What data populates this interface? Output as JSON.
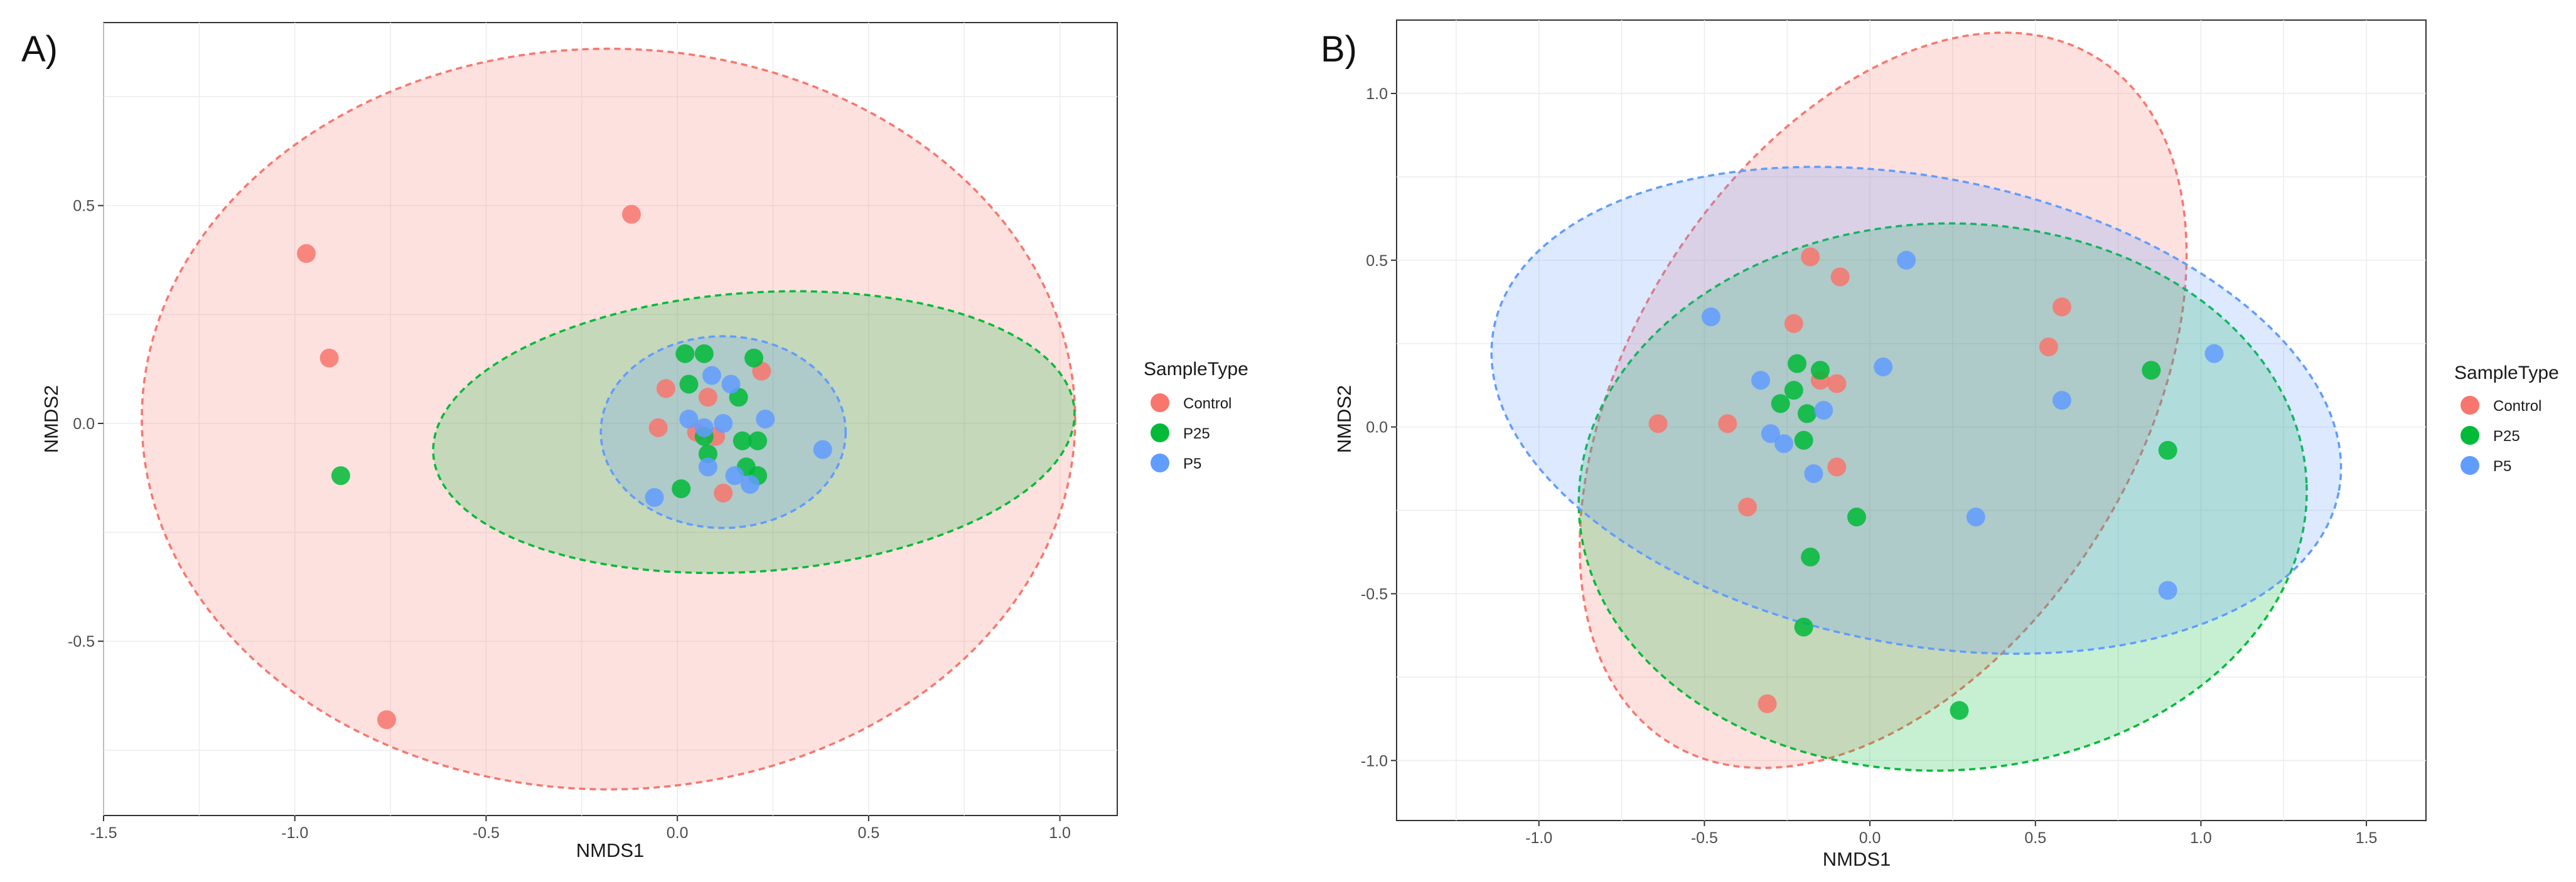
{
  "chart_data": [
    {
      "type": "scatter",
      "panel_label": "A)",
      "xlabel": "NMDS1",
      "ylabel": "NMDS2",
      "xlim": [
        -1.5,
        1.15
      ],
      "ylim": [
        -0.9,
        0.92
      ],
      "xticks": [
        -1.5,
        -1.0,
        -0.5,
        0.0,
        0.5,
        1.0
      ],
      "xtick_labels": [
        "-1.5",
        "-1.0",
        "-0.5",
        "0.0",
        "0.5",
        "1.0"
      ],
      "yticks": [
        -0.5,
        0.0,
        0.5
      ],
      "ytick_labels": [
        "-0.5",
        "0.0",
        "0.5"
      ],
      "grid": true,
      "legend": {
        "title": "SampleType",
        "position": "right",
        "entries": [
          "Control",
          "P25",
          "P5"
        ]
      },
      "series": [
        {
          "name": "Control",
          "color": "#F8766D",
          "ellipse": {
            "cx": -0.18,
            "cy": 0.01,
            "rx": 1.22,
            "ry": 0.85,
            "angle": 0
          },
          "points": [
            [
              -0.12,
              0.48
            ],
            [
              -0.97,
              0.39
            ],
            [
              -0.91,
              0.15
            ],
            [
              -0.76,
              -0.68
            ],
            [
              -0.03,
              0.08
            ],
            [
              0.08,
              0.06
            ],
            [
              -0.05,
              -0.01
            ],
            [
              0.1,
              -0.03
            ],
            [
              0.22,
              0.12
            ],
            [
              0.05,
              -0.02
            ],
            [
              0.12,
              -0.16
            ]
          ]
        },
        {
          "name": "P25",
          "color": "#00BA38",
          "ellipse": {
            "cx": 0.2,
            "cy": -0.02,
            "rx": 0.84,
            "ry": 0.32,
            "angle": 4
          },
          "points": [
            [
              -0.88,
              -0.12
            ],
            [
              0.02,
              0.16
            ],
            [
              0.07,
              0.16
            ],
            [
              0.2,
              0.15
            ],
            [
              0.03,
              0.09
            ],
            [
              0.16,
              0.06
            ],
            [
              0.07,
              -0.03
            ],
            [
              0.17,
              -0.04
            ],
            [
              0.21,
              -0.04
            ],
            [
              0.08,
              -0.07
            ],
            [
              0.18,
              -0.1
            ],
            [
              0.21,
              -0.12
            ],
            [
              0.01,
              -0.15
            ]
          ]
        },
        {
          "name": "P5",
          "color": "#619CFF",
          "ellipse": {
            "cx": 0.12,
            "cy": -0.02,
            "rx": 0.32,
            "ry": 0.22,
            "angle": 0
          },
          "points": [
            [
              0.09,
              0.11
            ],
            [
              0.14,
              0.09
            ],
            [
              0.03,
              0.01
            ],
            [
              0.12,
              0.0
            ],
            [
              0.23,
              0.01
            ],
            [
              0.07,
              -0.01
            ],
            [
              0.38,
              -0.06
            ],
            [
              0.08,
              -0.1
            ],
            [
              0.15,
              -0.12
            ],
            [
              0.19,
              -0.14
            ],
            [
              -0.06,
              -0.17
            ]
          ]
        }
      ]
    },
    {
      "type": "scatter",
      "panel_label": "B)",
      "xlabel": "NMDS1",
      "ylabel": "NMDS2",
      "xlim": [
        -1.43,
        1.68
      ],
      "ylim": [
        -1.18,
        1.22
      ],
      "xticks": [
        -1.0,
        -0.5,
        0.0,
        0.5,
        1.0,
        1.5
      ],
      "xtick_labels": [
        "-1.0",
        "-0.5",
        "0.0",
        "0.5",
        "1.0",
        "1.5"
      ],
      "yticks": [
        -1.0,
        -0.5,
        0.0,
        0.5,
        1.0
      ],
      "ytick_labels": [
        "-1.0",
        "-0.5",
        "0.0",
        "0.5",
        "1.0"
      ],
      "grid": true,
      "legend": {
        "title": "SampleType",
        "position": "right",
        "entries": [
          "Control",
          "P25",
          "P5"
        ]
      },
      "series": [
        {
          "name": "Control",
          "color": "#F8766D",
          "ellipse": {
            "cx": 0.04,
            "cy": 0.08,
            "rx": 1.22,
            "ry": 0.76,
            "angle": 58
          },
          "points": [
            [
              -0.18,
              0.51
            ],
            [
              -0.09,
              0.45
            ],
            [
              -0.23,
              0.31
            ],
            [
              0.58,
              0.36
            ],
            [
              0.54,
              0.24
            ],
            [
              -0.15,
              0.14
            ],
            [
              -0.1,
              0.13
            ],
            [
              -0.64,
              0.01
            ],
            [
              -0.43,
              0.01
            ],
            [
              -0.1,
              -0.12
            ],
            [
              -0.37,
              -0.24
            ],
            [
              -0.31,
              -0.83
            ]
          ]
        },
        {
          "name": "P25",
          "color": "#00BA38",
          "ellipse": {
            "cx": 0.22,
            "cy": -0.21,
            "rx": 1.1,
            "ry": 0.82,
            "angle": 2
          },
          "points": [
            [
              -0.22,
              0.19
            ],
            [
              -0.15,
              0.17
            ],
            [
              -0.23,
              0.11
            ],
            [
              -0.27,
              0.07
            ],
            [
              -0.19,
              0.04
            ],
            [
              -0.2,
              -0.04
            ],
            [
              -0.04,
              -0.27
            ],
            [
              -0.18,
              -0.39
            ],
            [
              -0.2,
              -0.6
            ],
            [
              0.27,
              -0.85
            ],
            [
              0.85,
              0.17
            ],
            [
              0.9,
              -0.07
            ]
          ]
        },
        {
          "name": "P5",
          "color": "#619CFF",
          "ellipse": {
            "cx": 0.14,
            "cy": 0.05,
            "rx": 1.3,
            "ry": 0.7,
            "angle": -11
          },
          "points": [
            [
              0.11,
              0.5
            ],
            [
              -0.48,
              0.33
            ],
            [
              0.04,
              0.18
            ],
            [
              -0.33,
              0.14
            ],
            [
              -0.14,
              0.05
            ],
            [
              -0.3,
              -0.02
            ],
            [
              -0.26,
              -0.05
            ],
            [
              -0.17,
              -0.14
            ],
            [
              0.32,
              -0.27
            ],
            [
              0.58,
              0.08
            ],
            [
              1.04,
              0.22
            ],
            [
              0.9,
              -0.49
            ]
          ]
        }
      ]
    }
  ]
}
